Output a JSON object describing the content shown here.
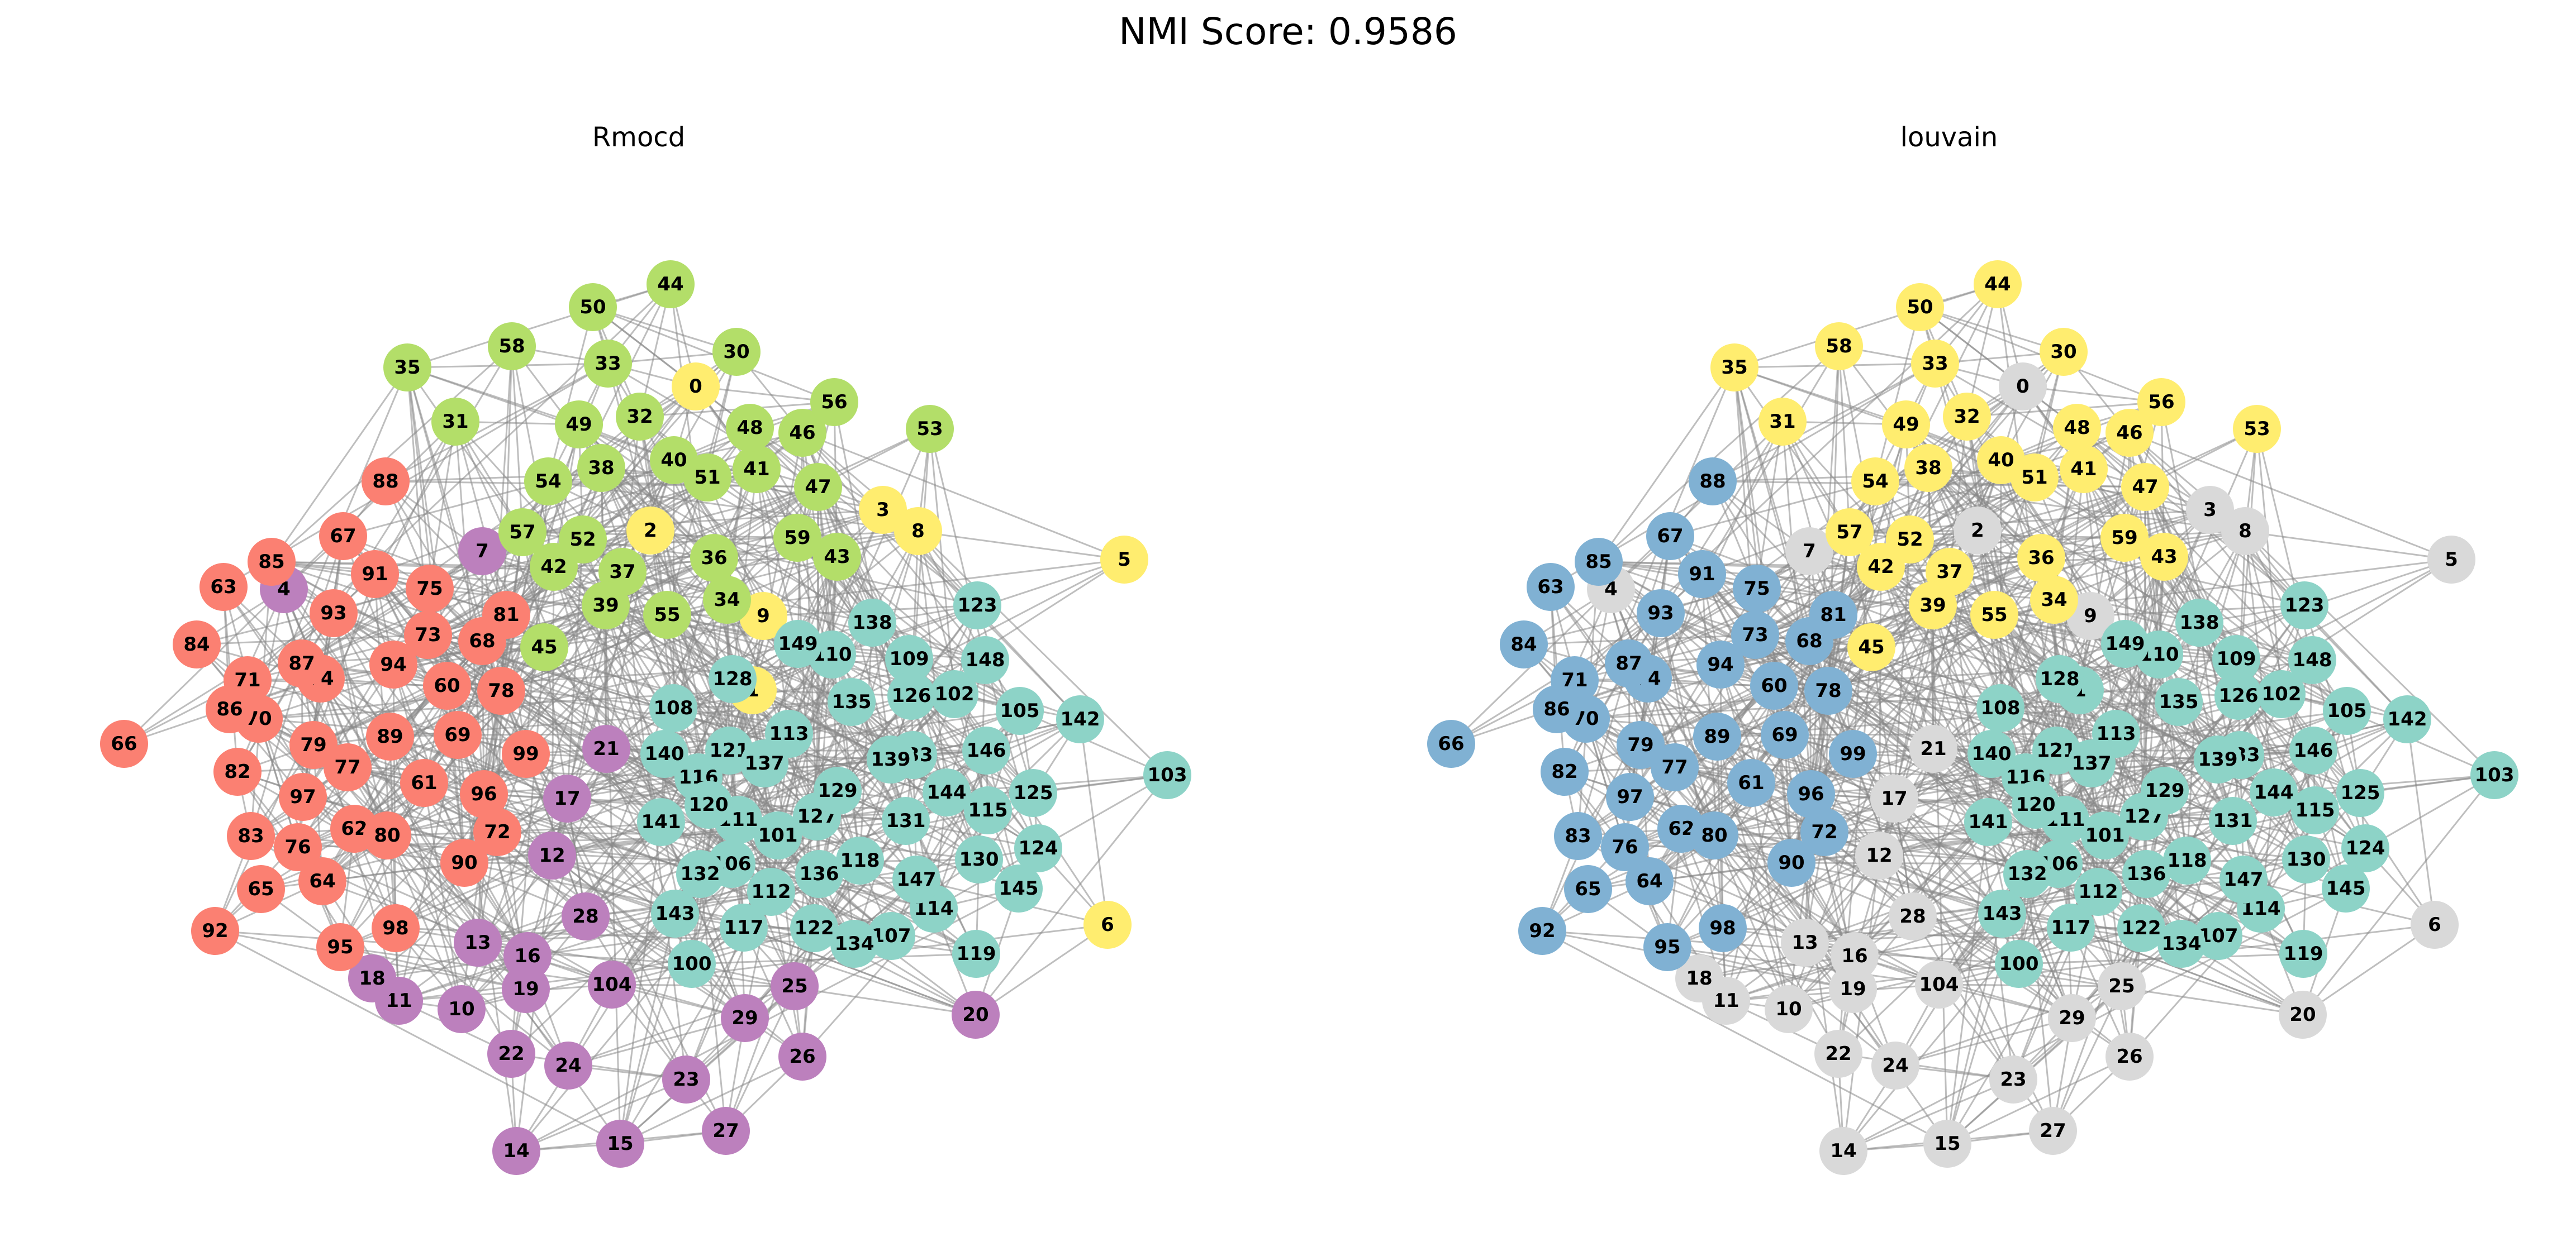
{
  "suptitle": "NMI Score: 0.9586",
  "panels": [
    {
      "title": "Rmocd",
      "key": "rmocd"
    },
    {
      "title": "louvain",
      "key": "louvain"
    }
  ],
  "palette": {
    "rmocd": {
      "green": "#b3de69",
      "salmon": "#fb8072",
      "teal": "#8dd3c7",
      "purple": "#bc80bd",
      "yellow": "#ffed6f"
    },
    "louvain": {
      "yellow": "#ffed6f",
      "blue": "#80b1d3",
      "teal": "#8dd3c7",
      "grey": "#d9d9d9"
    }
  },
  "nodes": [
    {
      "id": "0",
      "rmocd": "yellow",
      "louvain": "grey"
    },
    {
      "id": "1",
      "rmocd": "yellow",
      "louvain": "teal"
    },
    {
      "id": "2",
      "rmocd": "yellow",
      "louvain": "grey"
    },
    {
      "id": "3",
      "rmocd": "yellow",
      "louvain": "grey"
    },
    {
      "id": "4",
      "rmocd": "purple",
      "louvain": "grey"
    },
    {
      "id": "5",
      "rmocd": "yellow",
      "louvain": "grey"
    },
    {
      "id": "6",
      "rmocd": "yellow",
      "louvain": "grey"
    },
    {
      "id": "7",
      "rmocd": "purple",
      "louvain": "grey"
    },
    {
      "id": "8",
      "rmocd": "yellow",
      "louvain": "grey"
    },
    {
      "id": "9",
      "rmocd": "yellow",
      "louvain": "grey"
    },
    {
      "id": "10",
      "rmocd": "purple",
      "louvain": "grey"
    },
    {
      "id": "11",
      "rmocd": "purple",
      "louvain": "grey"
    },
    {
      "id": "12",
      "rmocd": "purple",
      "louvain": "grey"
    },
    {
      "id": "13",
      "rmocd": "purple",
      "louvain": "grey"
    },
    {
      "id": "14",
      "rmocd": "purple",
      "louvain": "grey"
    },
    {
      "id": "15",
      "rmocd": "purple",
      "louvain": "grey"
    },
    {
      "id": "16",
      "rmocd": "purple",
      "louvain": "grey"
    },
    {
      "id": "17",
      "rmocd": "purple",
      "louvain": "grey"
    },
    {
      "id": "18",
      "rmocd": "purple",
      "louvain": "grey"
    },
    {
      "id": "19",
      "rmocd": "purple",
      "louvain": "grey"
    },
    {
      "id": "20",
      "rmocd": "purple",
      "louvain": "grey"
    },
    {
      "id": "21",
      "rmocd": "purple",
      "louvain": "grey"
    },
    {
      "id": "22",
      "rmocd": "purple",
      "louvain": "grey"
    },
    {
      "id": "23",
      "rmocd": "purple",
      "louvain": "grey"
    },
    {
      "id": "24",
      "rmocd": "purple",
      "louvain": "grey"
    },
    {
      "id": "25",
      "rmocd": "purple",
      "louvain": "grey"
    },
    {
      "id": "26",
      "rmocd": "purple",
      "louvain": "grey"
    },
    {
      "id": "27",
      "rmocd": "purple",
      "louvain": "grey"
    },
    {
      "id": "28",
      "rmocd": "purple",
      "louvain": "grey"
    },
    {
      "id": "29",
      "rmocd": "purple",
      "louvain": "grey"
    },
    {
      "id": "30",
      "rmocd": "green",
      "louvain": "yellow"
    },
    {
      "id": "31",
      "rmocd": "green",
      "louvain": "yellow"
    },
    {
      "id": "32",
      "rmocd": "green",
      "louvain": "yellow"
    },
    {
      "id": "33",
      "rmocd": "green",
      "louvain": "yellow"
    },
    {
      "id": "34",
      "rmocd": "green",
      "louvain": "yellow"
    },
    {
      "id": "35",
      "rmocd": "green",
      "louvain": "yellow"
    },
    {
      "id": "36",
      "rmocd": "green",
      "louvain": "yellow"
    },
    {
      "id": "37",
      "rmocd": "green",
      "louvain": "yellow"
    },
    {
      "id": "38",
      "rmocd": "green",
      "louvain": "yellow"
    },
    {
      "id": "39",
      "rmocd": "green",
      "louvain": "yellow"
    },
    {
      "id": "40",
      "rmocd": "green",
      "louvain": "yellow"
    },
    {
      "id": "41",
      "rmocd": "green",
      "louvain": "yellow"
    },
    {
      "id": "42",
      "rmocd": "green",
      "louvain": "yellow"
    },
    {
      "id": "43",
      "rmocd": "green",
      "louvain": "yellow"
    },
    {
      "id": "44",
      "rmocd": "green",
      "louvain": "yellow"
    },
    {
      "id": "45",
      "rmocd": "green",
      "louvain": "yellow"
    },
    {
      "id": "46",
      "rmocd": "green",
      "louvain": "yellow"
    },
    {
      "id": "47",
      "rmocd": "green",
      "louvain": "yellow"
    },
    {
      "id": "48",
      "rmocd": "green",
      "louvain": "yellow"
    },
    {
      "id": "49",
      "rmocd": "green",
      "louvain": "yellow"
    },
    {
      "id": "50",
      "rmocd": "green",
      "louvain": "yellow"
    },
    {
      "id": "51",
      "rmocd": "green",
      "louvain": "yellow"
    },
    {
      "id": "52",
      "rmocd": "green",
      "louvain": "yellow"
    },
    {
      "id": "53",
      "rmocd": "green",
      "louvain": "yellow"
    },
    {
      "id": "54",
      "rmocd": "green",
      "louvain": "yellow"
    },
    {
      "id": "55",
      "rmocd": "green",
      "louvain": "yellow"
    },
    {
      "id": "56",
      "rmocd": "green",
      "louvain": "yellow"
    },
    {
      "id": "57",
      "rmocd": "green",
      "louvain": "yellow"
    },
    {
      "id": "58",
      "rmocd": "green",
      "louvain": "yellow"
    },
    {
      "id": "59",
      "rmocd": "green",
      "louvain": "yellow"
    },
    {
      "id": "60",
      "rmocd": "salmon",
      "louvain": "blue"
    },
    {
      "id": "61",
      "rmocd": "salmon",
      "louvain": "blue"
    },
    {
      "id": "62",
      "rmocd": "salmon",
      "louvain": "blue"
    },
    {
      "id": "63",
      "rmocd": "salmon",
      "louvain": "blue"
    },
    {
      "id": "64",
      "rmocd": "salmon",
      "louvain": "blue"
    },
    {
      "id": "65",
      "rmocd": "salmon",
      "louvain": "blue"
    },
    {
      "id": "66",
      "rmocd": "salmon",
      "louvain": "blue"
    },
    {
      "id": "67",
      "rmocd": "salmon",
      "louvain": "blue"
    },
    {
      "id": "68",
      "rmocd": "salmon",
      "louvain": "blue"
    },
    {
      "id": "69",
      "rmocd": "salmon",
      "louvain": "blue"
    },
    {
      "id": "70",
      "rmocd": "salmon",
      "louvain": "blue"
    },
    {
      "id": "71",
      "rmocd": "salmon",
      "louvain": "blue"
    },
    {
      "id": "72",
      "rmocd": "salmon",
      "louvain": "blue"
    },
    {
      "id": "73",
      "rmocd": "salmon",
      "louvain": "blue"
    },
    {
      "id": "74",
      "rmocd": "salmon",
      "louvain": "blue"
    },
    {
      "id": "75",
      "rmocd": "salmon",
      "louvain": "blue"
    },
    {
      "id": "76",
      "rmocd": "salmon",
      "louvain": "blue"
    },
    {
      "id": "77",
      "rmocd": "salmon",
      "louvain": "blue"
    },
    {
      "id": "78",
      "rmocd": "salmon",
      "louvain": "blue"
    },
    {
      "id": "79",
      "rmocd": "salmon",
      "louvain": "blue"
    },
    {
      "id": "80",
      "rmocd": "salmon",
      "louvain": "blue"
    },
    {
      "id": "81",
      "rmocd": "salmon",
      "louvain": "blue"
    },
    {
      "id": "82",
      "rmocd": "salmon",
      "louvain": "blue"
    },
    {
      "id": "83",
      "rmocd": "salmon",
      "louvain": "blue"
    },
    {
      "id": "84",
      "rmocd": "salmon",
      "louvain": "blue"
    },
    {
      "id": "85",
      "rmocd": "salmon",
      "louvain": "blue"
    },
    {
      "id": "86",
      "rmocd": "salmon",
      "louvain": "blue"
    },
    {
      "id": "87",
      "rmocd": "salmon",
      "louvain": "blue"
    },
    {
      "id": "88",
      "rmocd": "salmon",
      "louvain": "blue"
    },
    {
      "id": "89",
      "rmocd": "salmon",
      "louvain": "blue"
    },
    {
      "id": "90",
      "rmocd": "salmon",
      "louvain": "blue"
    },
    {
      "id": "91",
      "rmocd": "salmon",
      "louvain": "blue"
    },
    {
      "id": "92",
      "rmocd": "salmon",
      "louvain": "blue"
    },
    {
      "id": "93",
      "rmocd": "salmon",
      "louvain": "blue"
    },
    {
      "id": "94",
      "rmocd": "salmon",
      "louvain": "blue"
    },
    {
      "id": "95",
      "rmocd": "salmon",
      "louvain": "blue"
    },
    {
      "id": "96",
      "rmocd": "salmon",
      "louvain": "blue"
    },
    {
      "id": "97",
      "rmocd": "salmon",
      "louvain": "blue"
    },
    {
      "id": "98",
      "rmocd": "salmon",
      "louvain": "blue"
    },
    {
      "id": "99",
      "rmocd": "salmon",
      "louvain": "blue"
    },
    {
      "id": "100",
      "rmocd": "teal",
      "louvain": "teal"
    },
    {
      "id": "101",
      "rmocd": "teal",
      "louvain": "teal"
    },
    {
      "id": "102",
      "rmocd": "teal",
      "louvain": "teal"
    },
    {
      "id": "103",
      "rmocd": "teal",
      "louvain": "teal"
    },
    {
      "id": "104",
      "rmocd": "purple",
      "louvain": "grey"
    },
    {
      "id": "105",
      "rmocd": "teal",
      "louvain": "teal"
    },
    {
      "id": "106",
      "rmocd": "teal",
      "louvain": "teal"
    },
    {
      "id": "107",
      "rmocd": "teal",
      "louvain": "teal"
    },
    {
      "id": "108",
      "rmocd": "teal",
      "louvain": "teal"
    },
    {
      "id": "109",
      "rmocd": "teal",
      "louvain": "teal"
    },
    {
      "id": "110",
      "rmocd": "teal",
      "louvain": "teal"
    },
    {
      "id": "111",
      "rmocd": "teal",
      "louvain": "teal"
    },
    {
      "id": "112",
      "rmocd": "teal",
      "louvain": "teal"
    },
    {
      "id": "113",
      "rmocd": "teal",
      "louvain": "teal"
    },
    {
      "id": "114",
      "rmocd": "teal",
      "louvain": "teal"
    },
    {
      "id": "115",
      "rmocd": "teal",
      "louvain": "teal"
    },
    {
      "id": "116",
      "rmocd": "teal",
      "louvain": "teal"
    },
    {
      "id": "117",
      "rmocd": "teal",
      "louvain": "teal"
    },
    {
      "id": "118",
      "rmocd": "teal",
      "louvain": "teal"
    },
    {
      "id": "119",
      "rmocd": "teal",
      "louvain": "teal"
    },
    {
      "id": "120",
      "rmocd": "teal",
      "louvain": "teal"
    },
    {
      "id": "121",
      "rmocd": "teal",
      "louvain": "teal"
    },
    {
      "id": "122",
      "rmocd": "teal",
      "louvain": "teal"
    },
    {
      "id": "123",
      "rmocd": "teal",
      "louvain": "teal"
    },
    {
      "id": "124",
      "rmocd": "teal",
      "louvain": "teal"
    },
    {
      "id": "125",
      "rmocd": "teal",
      "louvain": "teal"
    },
    {
      "id": "126",
      "rmocd": "teal",
      "louvain": "teal"
    },
    {
      "id": "127",
      "rmocd": "teal",
      "louvain": "teal"
    },
    {
      "id": "128",
      "rmocd": "teal",
      "louvain": "teal"
    },
    {
      "id": "129",
      "rmocd": "teal",
      "louvain": "teal"
    },
    {
      "id": "130",
      "rmocd": "teal",
      "louvain": "teal"
    },
    {
      "id": "131",
      "rmocd": "teal",
      "louvain": "teal"
    },
    {
      "id": "132",
      "rmocd": "teal",
      "louvain": "teal"
    },
    {
      "id": "133",
      "rmocd": "teal",
      "louvain": "teal"
    },
    {
      "id": "134",
      "rmocd": "teal",
      "louvain": "teal"
    },
    {
      "id": "135",
      "rmocd": "teal",
      "louvain": "teal"
    },
    {
      "id": "136",
      "rmocd": "teal",
      "louvain": "teal"
    },
    {
      "id": "137",
      "rmocd": "teal",
      "louvain": "teal"
    },
    {
      "id": "138",
      "rmocd": "teal",
      "louvain": "teal"
    },
    {
      "id": "139",
      "rmocd": "teal",
      "louvain": "teal"
    },
    {
      "id": "140",
      "rmocd": "teal",
      "louvain": "teal"
    },
    {
      "id": "141",
      "rmocd": "teal",
      "louvain": "teal"
    },
    {
      "id": "142",
      "rmocd": "teal",
      "louvain": "teal"
    },
    {
      "id": "143",
      "rmocd": "teal",
      "louvain": "teal"
    },
    {
      "id": "144",
      "rmocd": "teal",
      "louvain": "teal"
    },
    {
      "id": "145",
      "rmocd": "teal",
      "louvain": "teal"
    },
    {
      "id": "146",
      "rmocd": "teal",
      "louvain": "teal"
    },
    {
      "id": "147",
      "rmocd": "teal",
      "louvain": "teal"
    },
    {
      "id": "148",
      "rmocd": "teal",
      "louvain": "teal"
    },
    {
      "id": "149",
      "rmocd": "teal",
      "louvain": "teal"
    }
  ]
}
